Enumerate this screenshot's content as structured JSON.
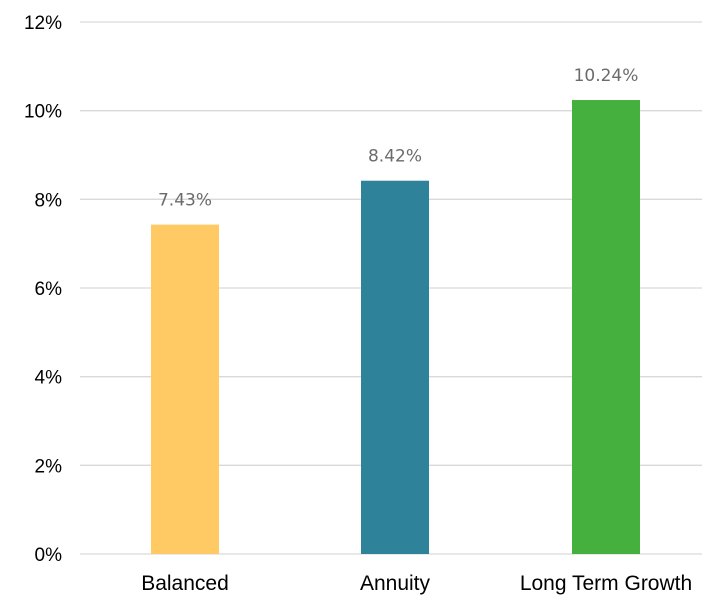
{
  "chart_data": {
    "type": "bar",
    "categories": [
      "Balanced",
      "Annuity",
      "Long Term Growth"
    ],
    "values": [
      7.43,
      8.42,
      10.24
    ],
    "data_labels": [
      "7.43%",
      "8.42%",
      "10.24%"
    ],
    "colors": [
      "#ffca64",
      "#2e839b",
      "#46b03e"
    ],
    "ylim": [
      0,
      12
    ],
    "yticks": [
      0,
      2,
      4,
      6,
      8,
      10,
      12
    ],
    "ytick_labels": [
      "0%",
      "2%",
      "4%",
      "6%",
      "8%",
      "10%",
      "12%"
    ],
    "grid": true,
    "title": "",
    "xlabel": "",
    "ylabel": ""
  }
}
